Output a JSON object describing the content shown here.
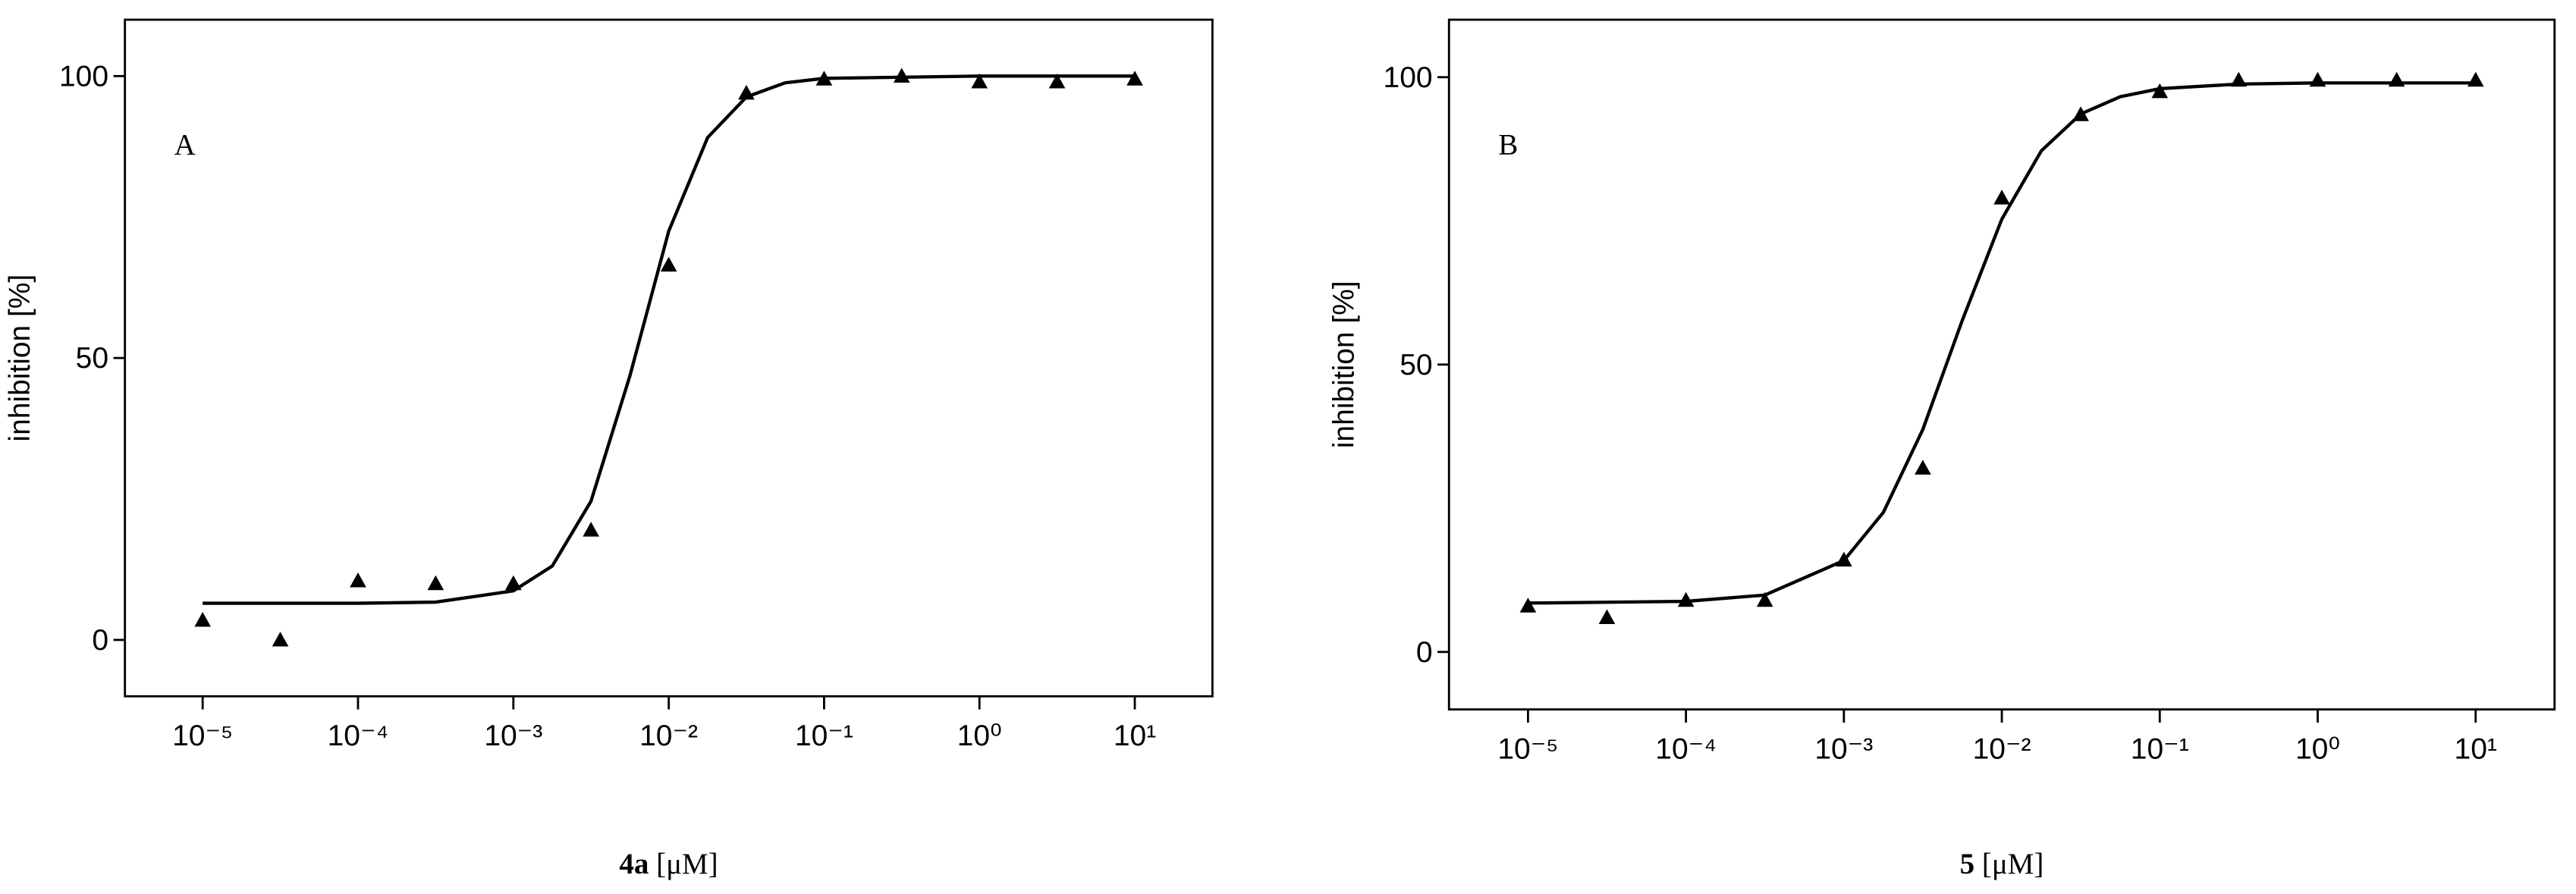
{
  "chart_data": [
    {
      "type": "scatter",
      "annotation": "A",
      "ylabel": "inhibition [%]",
      "xlabel": {
        "compound": "4a",
        "unit": "[μM]"
      },
      "xscale": "log",
      "xlim": [
        3.16e-06,
        31.6
      ],
      "ylim": [
        -10,
        110
      ],
      "xticks": [
        {
          "value": 1e-05,
          "label": "10⁻⁵"
        },
        {
          "value": 0.0001,
          "label": "10⁻⁴"
        },
        {
          "value": 0.001,
          "label": "10⁻³"
        },
        {
          "value": 0.01,
          "label": "10⁻²"
        },
        {
          "value": 0.1,
          "label": "10⁻¹"
        },
        {
          "value": 1,
          "label": "10⁰"
        },
        {
          "value": 10,
          "label": "10¹"
        }
      ],
      "yticks": [
        0,
        50,
        100
      ],
      "series": [
        {
          "type": "scatter",
          "color": "#000000",
          "x": [
            1e-05,
            3.16e-05,
            0.0001,
            0.000316,
            0.001,
            0.00316,
            0.01,
            0.0316,
            0.1,
            0.316,
            1,
            3.16,
            10
          ],
          "values": [
            3.5,
            0,
            10.5,
            10,
            10,
            19.5,
            66.5,
            97,
            99.5,
            100,
            99,
            99,
            99.5
          ]
        },
        {
          "type": "line",
          "color": "#000000",
          "x": [
            1e-05,
            0.0001,
            0.000316,
            0.001,
            0.00178,
            0.00316,
            0.00562,
            0.01,
            0.0178,
            0.0316,
            0.0562,
            0.1,
            1,
            10
          ],
          "values": [
            6.5,
            6.5,
            6.7,
            8.7,
            13.1,
            24.6,
            46.8,
            72.5,
            89.1,
            96.3,
            98.8,
            99.6,
            100,
            100
          ]
        }
      ]
    },
    {
      "type": "scatter",
      "annotation": "B",
      "ylabel": "inhibition [%]",
      "xlabel": {
        "compound": "5",
        "unit": "[μM]"
      },
      "xscale": "log",
      "xlim": [
        3.16e-06,
        31.6
      ],
      "ylim": [
        -10,
        110
      ],
      "xticks": [
        {
          "value": 1e-05,
          "label": "10⁻⁵"
        },
        {
          "value": 0.0001,
          "label": "10⁻⁴"
        },
        {
          "value": 0.001,
          "label": "10⁻³"
        },
        {
          "value": 0.01,
          "label": "10⁻²"
        },
        {
          "value": 0.1,
          "label": "10⁻¹"
        },
        {
          "value": 1,
          "label": "10⁰"
        },
        {
          "value": 10,
          "label": "10¹"
        }
      ],
      "yticks": [
        0,
        50,
        100
      ],
      "series": [
        {
          "type": "scatter",
          "color": "#000000",
          "x": [
            1e-05,
            3.16e-05,
            0.0001,
            0.000316,
            0.001,
            0.00316,
            0.01,
            0.0316,
            0.1,
            0.316,
            1,
            3.16,
            10
          ],
          "values": [
            8,
            6,
            9,
            9,
            16,
            32,
            79,
            93.5,
            97.5,
            99.5,
            99.5,
            99.5,
            99.5
          ]
        },
        {
          "type": "line",
          "color": "#000000",
          "x": [
            1e-05,
            0.0001,
            0.000316,
            0.001,
            0.00178,
            0.00316,
            0.00562,
            0.01,
            0.0178,
            0.0316,
            0.0562,
            0.1,
            0.316,
            1,
            10
          ],
          "values": [
            8.5,
            8.8,
            9.9,
            15.9,
            24.3,
            38.7,
            57.7,
            75.3,
            87.2,
            93.6,
            96.6,
            98,
            98.8,
            99,
            99
          ]
        }
      ]
    }
  ]
}
